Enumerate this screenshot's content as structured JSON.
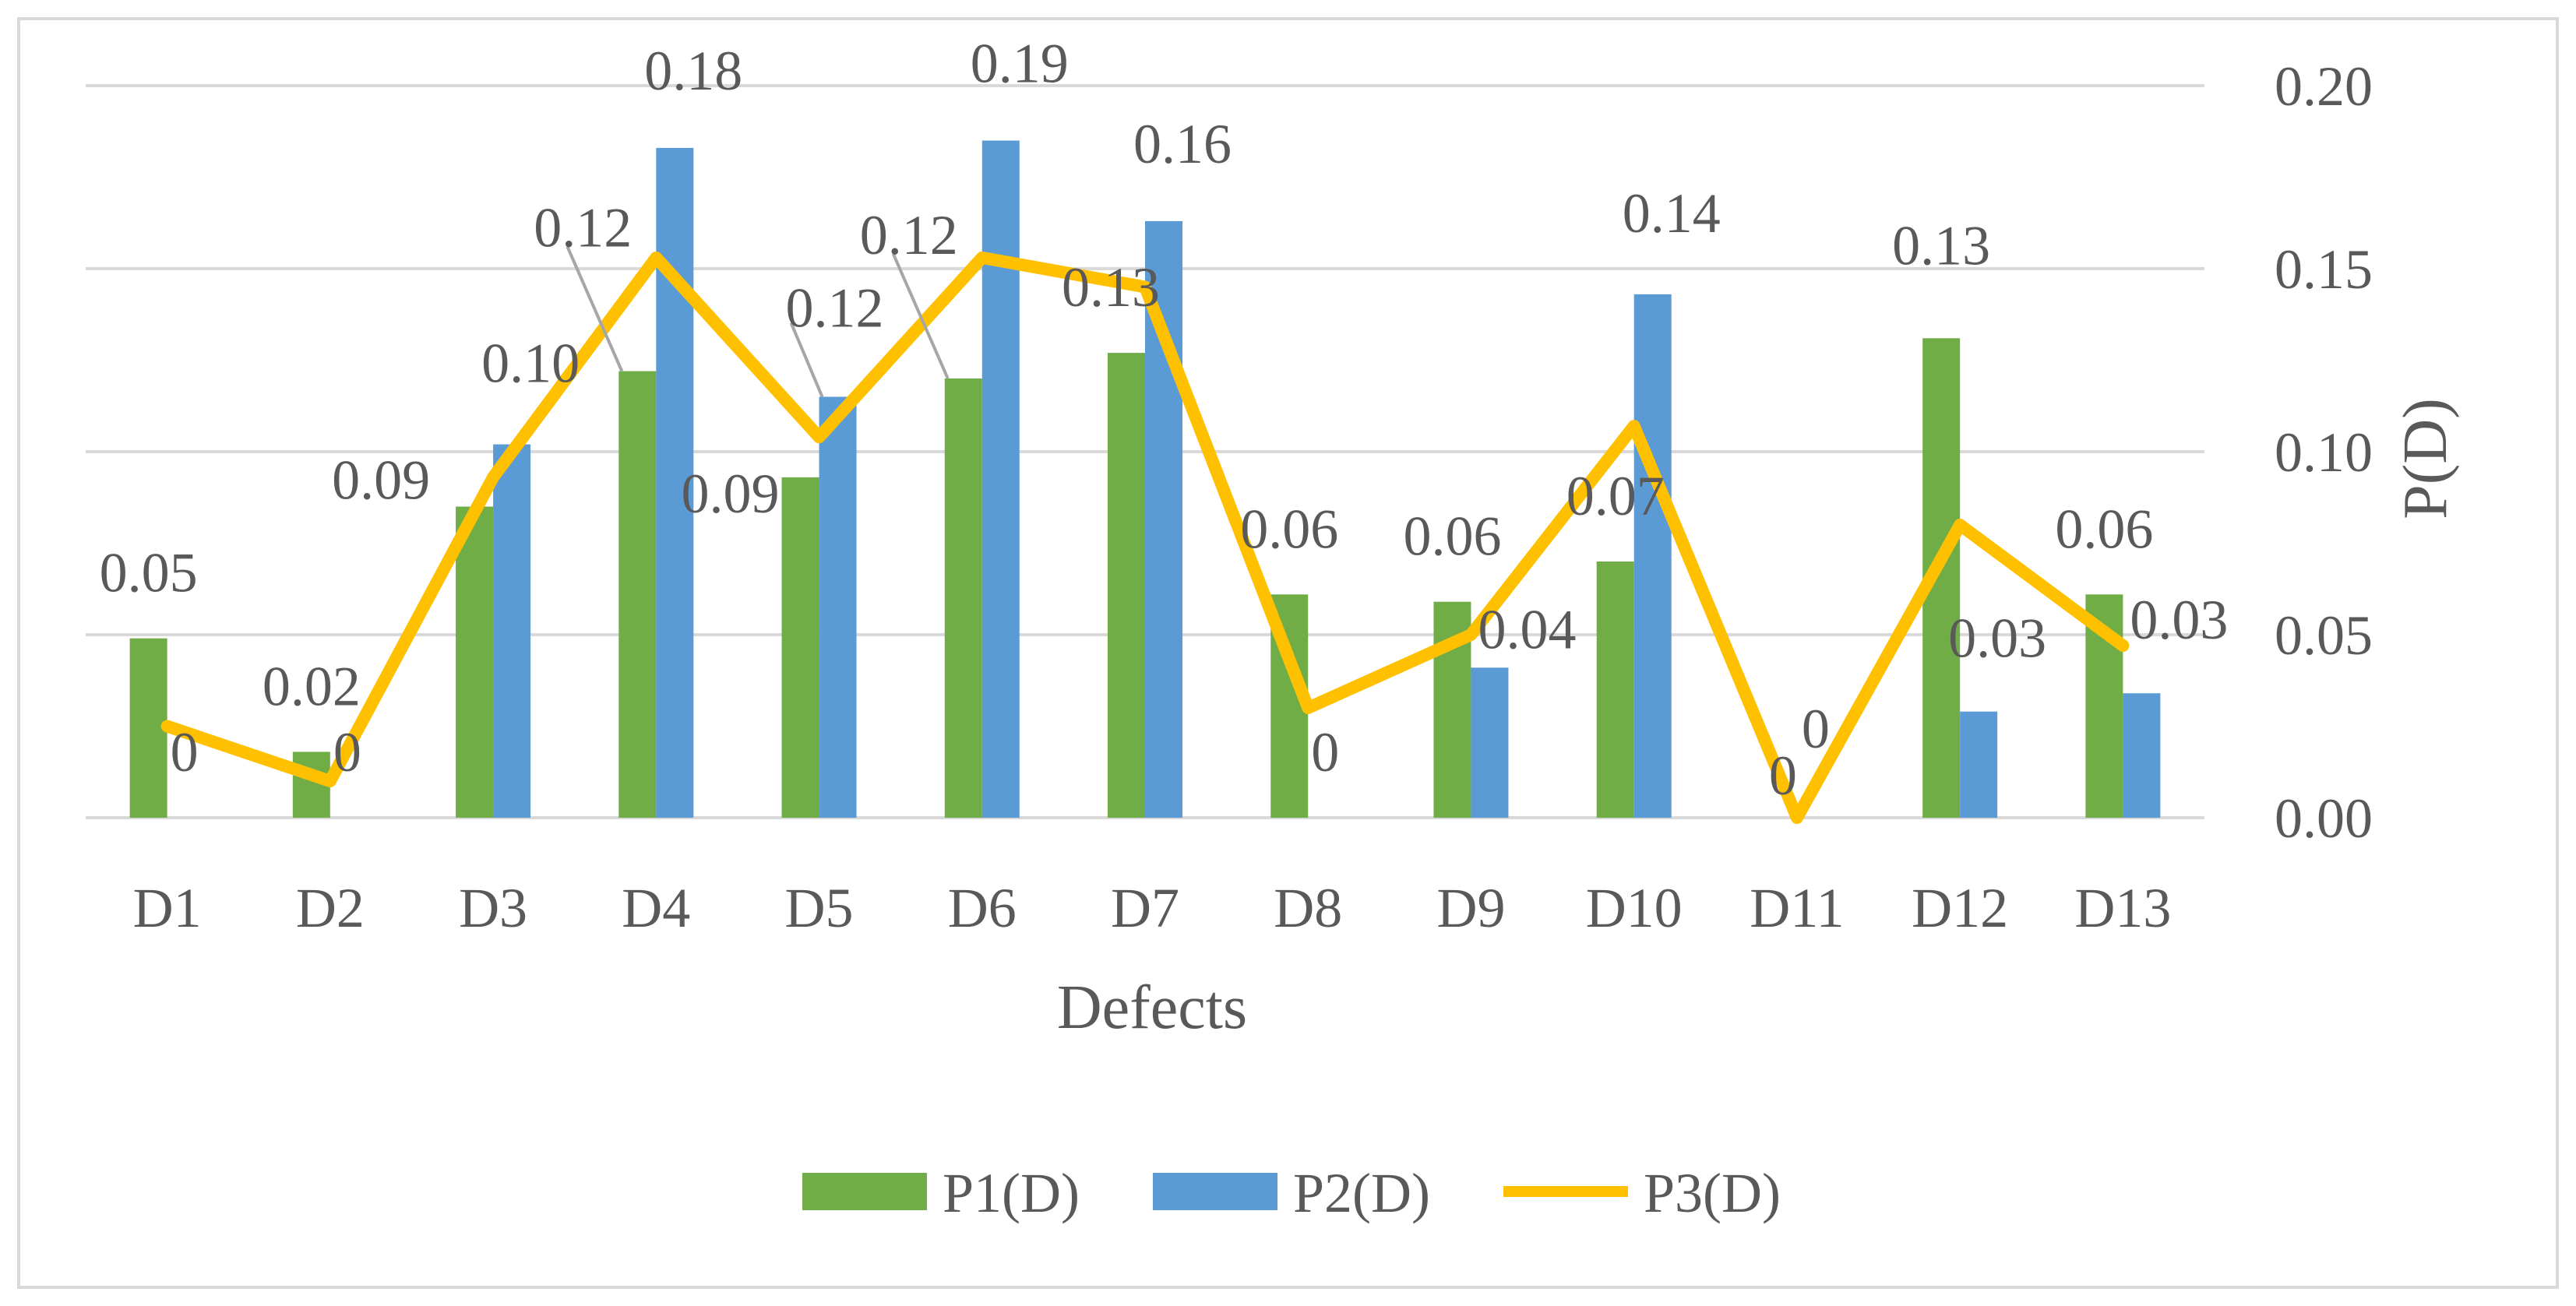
{
  "chart_data": {
    "type": "bar",
    "title": "",
    "xlabel": "Defects",
    "ylabel": "P(D)",
    "y_axis_position": "right",
    "ylim": [
      0,
      0.2
    ],
    "yticks": [
      0.0,
      0.05,
      0.1,
      0.15,
      0.2
    ],
    "ytick_labels": [
      "0.00",
      "0.05",
      "0.10",
      "0.15",
      "0.20"
    ],
    "grid": true,
    "legend_position": "bottom",
    "categories": [
      "D1",
      "D2",
      "D3",
      "D4",
      "D5",
      "D6",
      "D7",
      "D8",
      "D9",
      "D10",
      "D11",
      "D12",
      "D13"
    ],
    "series": [
      {
        "name": "P1(D)",
        "type": "bar",
        "color": "#70AD47",
        "values": [
          0.049,
          0.018,
          0.085,
          0.122,
          0.093,
          0.12,
          0.127,
          0.061,
          0.059,
          0.07,
          0.0,
          0.131,
          0.061
        ],
        "labels": [
          "0.05",
          "0.02",
          "0.09",
          "0.12",
          "0.09",
          "0.12",
          "0.13",
          "0.06",
          "0.06",
          "0.07",
          "0",
          "0.13",
          "0.06"
        ]
      },
      {
        "name": "P2(D)",
        "type": "bar",
        "color": "#5B9BD5",
        "values": [
          0.0,
          0.0,
          0.102,
          0.183,
          0.115,
          0.185,
          0.163,
          0.0,
          0.041,
          0.143,
          0.0,
          0.029,
          0.034
        ],
        "labels": [
          "0",
          "0",
          "0.10",
          "0.18",
          "0.12",
          "0.19",
          "0.16",
          "0",
          "0.04",
          "0.14",
          "0",
          "0.03",
          "0.03"
        ]
      },
      {
        "name": "P3(D)",
        "type": "line",
        "color": "#FFC000",
        "values": [
          0.025,
          0.01,
          0.093,
          0.153,
          0.104,
          0.153,
          0.145,
          0.03,
          0.05,
          0.107,
          0.0,
          0.08,
          0.047
        ]
      }
    ]
  }
}
